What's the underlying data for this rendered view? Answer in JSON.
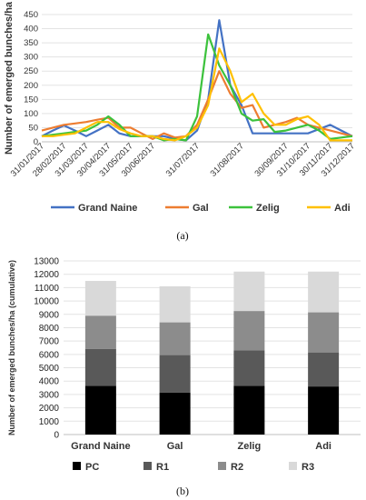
{
  "chart_data": [
    {
      "type": "line",
      "panel_label": "(a)",
      "ylabel": "Number of emerged bunches/ha",
      "ylim": [
        0,
        450
      ],
      "yticks": [
        0,
        50,
        100,
        150,
        200,
        250,
        300,
        350,
        400,
        450
      ],
      "x": [
        "31/01/2017",
        "14/02/2017",
        "28/02/2017",
        "14/03/2017",
        "31/03/2017",
        "14/04/2017",
        "30/04/2017",
        "14/05/2017",
        "31/05/2017",
        "14/06/2017",
        "30/06/2017",
        "08/07/2017",
        "14/07/2017",
        "21/07/2017",
        "31/07/2017",
        "07/08/2017",
        "14/08/2017",
        "21/08/2017",
        "31/08/2017",
        "07/09/2017",
        "14/09/2017",
        "21/09/2017",
        "30/09/2017",
        "14/10/2017",
        "31/10/2017",
        "14/11/2017",
        "30/11/2017",
        "14/12/2017",
        "31/12/2017"
      ],
      "xticks": [
        "31/01/2017",
        "28/02/2017",
        "31/03/2017",
        "30/04/2017",
        "31/05/2017",
        "30/06/2017",
        "31/07/2017",
        "31/08/2017",
        "30/09/2017",
        "31/10/2017",
        "30/11/2017",
        "31/12/2017"
      ],
      "grid": true,
      "legend_position": "bottom",
      "series": [
        {
          "name": "Grand Naine",
          "color": "#4472C4",
          "values": [
            20,
            40,
            58,
            40,
            20,
            40,
            60,
            30,
            20,
            20,
            20,
            20,
            10,
            5,
            40,
            150,
            430,
            200,
            130,
            30,
            30,
            30,
            30,
            30,
            30,
            45,
            60,
            40,
            20
          ]
        },
        {
          "name": "Gal",
          "color": "#ED7D31",
          "values": [
            40,
            50,
            60,
            65,
            70,
            78,
            85,
            50,
            50,
            30,
            10,
            30,
            15,
            20,
            60,
            150,
            250,
            170,
            120,
            130,
            50,
            60,
            70,
            85,
            60,
            50,
            40,
            30,
            20
          ]
        },
        {
          "name": "Zelig",
          "color": "#3CC23C",
          "values": [
            20,
            25,
            30,
            35,
            40,
            60,
            90,
            60,
            20,
            20,
            20,
            5,
            10,
            5,
            90,
            380,
            270,
            200,
            100,
            75,
            80,
            35,
            40,
            50,
            60,
            40,
            10,
            15,
            20
          ]
        },
        {
          "name": "Adi",
          "color": "#FFC000",
          "values": [
            20,
            20,
            25,
            30,
            50,
            70,
            70,
            45,
            30,
            20,
            20,
            10,
            5,
            20,
            50,
            130,
            330,
            250,
            140,
            170,
            100,
            60,
            60,
            80,
            90,
            60,
            5,
            5,
            5
          ]
        }
      ]
    },
    {
      "type": "bar",
      "stacked": true,
      "panel_label": "(b)",
      "ylabel": "Number of emerged bunches/ha (cumulative)",
      "ylim": [
        0,
        13000
      ],
      "yticks": [
        0,
        1000,
        2000,
        3000,
        4000,
        5000,
        6000,
        7000,
        8000,
        9000,
        10000,
        11000,
        12000,
        13000
      ],
      "categories": [
        "Grand Naine",
        "Gal",
        "Zelig",
        "Adi"
      ],
      "legend_position": "bottom",
      "series": [
        {
          "name": "PC",
          "color": "#000000",
          "values": [
            3650,
            3150,
            3650,
            3600
          ]
        },
        {
          "name": "R1",
          "color": "#595959",
          "values": [
            2750,
            2800,
            2650,
            2550
          ]
        },
        {
          "name": "R2",
          "color": "#8C8C8C",
          "values": [
            2500,
            2450,
            2950,
            3000
          ]
        },
        {
          "name": "R3",
          "color": "#D9D9D9",
          "values": [
            2600,
            2700,
            2950,
            3050
          ]
        }
      ]
    }
  ]
}
